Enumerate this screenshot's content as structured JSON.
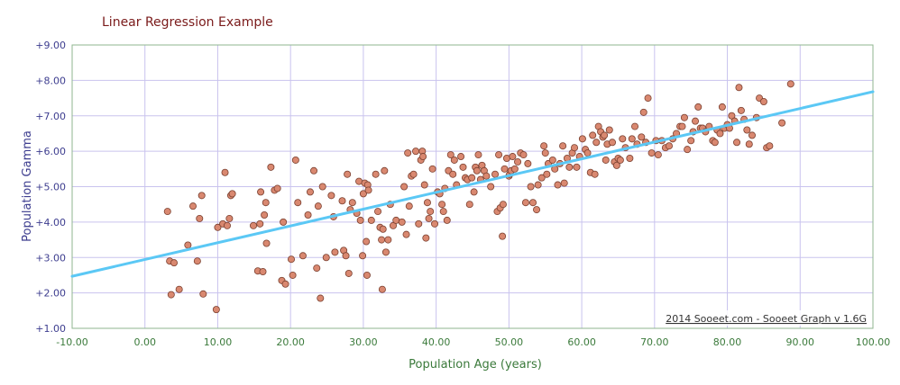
{
  "chart_data": {
    "type": "scatter",
    "title": "Linear Regression Example",
    "xlabel": "Population Age (years)",
    "ylabel": "Population Gamma",
    "xlim": [
      -10,
      100
    ],
    "ylim": [
      1,
      9
    ],
    "x_ticks": [
      "-10.00",
      "0.00",
      "10.00",
      "20.00",
      "30.00",
      "40.00",
      "50.00",
      "60.00",
      "70.00",
      "80.00",
      "90.00",
      "100.00"
    ],
    "y_ticks": [
      "+1.00",
      "+2.00",
      "+3.00",
      "+4.00",
      "+5.00",
      "+6.00",
      "+7.00",
      "+8.00",
      "+9.00"
    ],
    "grid": true,
    "credit": "2014 Sooeet.com - Sooeet Graph v 1.6G",
    "colors": {
      "points": "#d98870",
      "point_stroke": "#7a4030",
      "trendline": "#5bc8f5",
      "grid": "#c9c3ee",
      "frame": "#8fb58f"
    },
    "trendline": {
      "x": [
        -10,
        100
      ],
      "y": [
        2.47,
        7.68
      ]
    },
    "points": [
      [
        3.1,
        4.3
      ],
      [
        3.4,
        2.9
      ],
      [
        3.6,
        1.95
      ],
      [
        4.0,
        2.85
      ],
      [
        4.7,
        2.1
      ],
      [
        5.9,
        3.35
      ],
      [
        6.6,
        4.45
      ],
      [
        7.2,
        2.9
      ],
      [
        7.5,
        4.1
      ],
      [
        7.8,
        4.75
      ],
      [
        8.0,
        1.97
      ],
      [
        9.8,
        1.53
      ],
      [
        10.0,
        3.85
      ],
      [
        10.7,
        3.95
      ],
      [
        11.0,
        5.4
      ],
      [
        11.3,
        3.9
      ],
      [
        11.6,
        4.1
      ],
      [
        11.8,
        4.75
      ],
      [
        12.0,
        4.8
      ],
      [
        14.9,
        3.9
      ],
      [
        15.5,
        2.62
      ],
      [
        15.8,
        3.95
      ],
      [
        15.9,
        4.85
      ],
      [
        16.2,
        2.6
      ],
      [
        16.4,
        4.2
      ],
      [
        16.6,
        4.55
      ],
      [
        16.7,
        3.4
      ],
      [
        17.3,
        5.55
      ],
      [
        17.8,
        4.9
      ],
      [
        18.2,
        4.95
      ],
      [
        18.8,
        2.35
      ],
      [
        19.0,
        4.0
      ],
      [
        19.3,
        2.25
      ],
      [
        20.1,
        2.95
      ],
      [
        20.3,
        2.5
      ],
      [
        20.7,
        5.75
      ],
      [
        21.0,
        4.55
      ],
      [
        21.7,
        3.05
      ],
      [
        22.4,
        4.2
      ],
      [
        22.7,
        4.85
      ],
      [
        23.2,
        5.45
      ],
      [
        23.6,
        2.7
      ],
      [
        23.8,
        4.45
      ],
      [
        24.1,
        1.85
      ],
      [
        24.4,
        5.0
      ],
      [
        24.9,
        3.0
      ],
      [
        25.6,
        4.75
      ],
      [
        25.9,
        4.15
      ],
      [
        26.1,
        3.15
      ],
      [
        27.1,
        4.6
      ],
      [
        27.3,
        3.2
      ],
      [
        27.6,
        3.05
      ],
      [
        27.8,
        5.35
      ],
      [
        28.0,
        2.55
      ],
      [
        28.2,
        4.35
      ],
      [
        28.5,
        4.55
      ],
      [
        29.1,
        4.25
      ],
      [
        29.4,
        5.15
      ],
      [
        29.6,
        4.05
      ],
      [
        29.9,
        3.05
      ],
      [
        30.0,
        4.8
      ],
      [
        30.2,
        5.1
      ],
      [
        30.4,
        3.45
      ],
      [
        30.5,
        2.5
      ],
      [
        30.6,
        5.05
      ],
      [
        30.7,
        4.9
      ],
      [
        31.1,
        4.05
      ],
      [
        31.7,
        5.35
      ],
      [
        32.0,
        4.3
      ],
      [
        32.3,
        3.85
      ],
      [
        32.5,
        3.5
      ],
      [
        32.6,
        2.1
      ],
      [
        32.7,
        3.8
      ],
      [
        32.9,
        5.45
      ],
      [
        33.1,
        3.15
      ],
      [
        33.4,
        3.5
      ],
      [
        33.7,
        4.5
      ],
      [
        34.1,
        3.9
      ],
      [
        34.5,
        4.05
      ],
      [
        35.3,
        4.0
      ],
      [
        35.6,
        5.0
      ],
      [
        35.9,
        3.65
      ],
      [
        36.1,
        5.95
      ],
      [
        36.3,
        4.45
      ],
      [
        36.6,
        5.3
      ],
      [
        36.9,
        5.35
      ],
      [
        37.2,
        6.0
      ],
      [
        37.6,
        3.95
      ],
      [
        37.9,
        5.75
      ],
      [
        38.1,
        6.0
      ],
      [
        38.2,
        5.85
      ],
      [
        38.4,
        5.05
      ],
      [
        38.6,
        3.55
      ],
      [
        38.8,
        4.55
      ],
      [
        39.0,
        4.1
      ],
      [
        39.2,
        4.3
      ],
      [
        39.5,
        5.5
      ],
      [
        39.8,
        3.95
      ],
      [
        40.2,
        4.85
      ],
      [
        40.5,
        4.8
      ],
      [
        40.8,
        4.5
      ],
      [
        41.0,
        4.3
      ],
      [
        41.2,
        4.95
      ],
      [
        41.5,
        4.05
      ],
      [
        41.7,
        5.45
      ],
      [
        42.0,
        5.9
      ],
      [
        42.3,
        5.35
      ],
      [
        42.5,
        5.75
      ],
      [
        42.8,
        5.05
      ],
      [
        43.4,
        5.85
      ],
      [
        43.7,
        5.55
      ],
      [
        44.0,
        5.25
      ],
      [
        44.3,
        5.2
      ],
      [
        44.6,
        4.5
      ],
      [
        44.9,
        5.25
      ],
      [
        45.2,
        4.85
      ],
      [
        45.4,
        5.55
      ],
      [
        45.6,
        5.45
      ],
      [
        45.8,
        5.9
      ],
      [
        46.1,
        5.2
      ],
      [
        46.3,
        5.6
      ],
      [
        46.6,
        5.45
      ],
      [
        46.9,
        5.3
      ],
      [
        47.5,
        5.0
      ],
      [
        48.1,
        5.35
      ],
      [
        48.4,
        4.3
      ],
      [
        48.6,
        5.9
      ],
      [
        48.8,
        4.4
      ],
      [
        49.1,
        3.6
      ],
      [
        49.2,
        4.5
      ],
      [
        49.4,
        5.5
      ],
      [
        49.7,
        5.8
      ],
      [
        50.0,
        5.3
      ],
      [
        50.1,
        5.35
      ],
      [
        50.3,
        5.45
      ],
      [
        50.5,
        5.85
      ],
      [
        50.8,
        5.5
      ],
      [
        51.2,
        5.7
      ],
      [
        51.6,
        5.95
      ],
      [
        52.0,
        5.9
      ],
      [
        52.3,
        4.55
      ],
      [
        52.6,
        5.65
      ],
      [
        53.0,
        5.0
      ],
      [
        53.3,
        4.55
      ],
      [
        53.8,
        4.35
      ],
      [
        54.0,
        5.05
      ],
      [
        54.5,
        5.25
      ],
      [
        54.8,
        6.15
      ],
      [
        55.0,
        5.95
      ],
      [
        55.2,
        5.35
      ],
      [
        55.4,
        5.65
      ],
      [
        56.0,
        5.75
      ],
      [
        56.3,
        5.5
      ],
      [
        56.7,
        5.05
      ],
      [
        57.0,
        5.65
      ],
      [
        57.4,
        6.15
      ],
      [
        57.6,
        5.1
      ],
      [
        58.0,
        5.8
      ],
      [
        58.3,
        5.55
      ],
      [
        58.7,
        5.95
      ],
      [
        59.0,
        6.1
      ],
      [
        59.3,
        5.55
      ],
      [
        59.7,
        5.85
      ],
      [
        60.1,
        6.35
      ],
      [
        60.5,
        6.05
      ],
      [
        60.8,
        5.95
      ],
      [
        61.2,
        5.4
      ],
      [
        61.5,
        6.45
      ],
      [
        61.8,
        5.35
      ],
      [
        62.0,
        6.25
      ],
      [
        62.3,
        6.7
      ],
      [
        62.6,
        6.55
      ],
      [
        62.9,
        6.4
      ],
      [
        63.1,
        6.45
      ],
      [
        63.3,
        5.75
      ],
      [
        63.5,
        6.2
      ],
      [
        63.8,
        6.6
      ],
      [
        64.2,
        6.25
      ],
      [
        64.5,
        5.7
      ],
      [
        64.8,
        5.6
      ],
      [
        65.0,
        5.8
      ],
      [
        65.3,
        5.75
      ],
      [
        65.6,
        6.35
      ],
      [
        66.0,
        6.1
      ],
      [
        66.6,
        5.8
      ],
      [
        66.9,
        6.35
      ],
      [
        67.3,
        6.7
      ],
      [
        67.6,
        6.2
      ],
      [
        68.2,
        6.4
      ],
      [
        68.5,
        7.1
      ],
      [
        68.8,
        6.25
      ],
      [
        69.1,
        7.5
      ],
      [
        69.6,
        5.95
      ],
      [
        70.2,
        6.3
      ],
      [
        70.5,
        5.9
      ],
      [
        71.0,
        6.3
      ],
      [
        71.5,
        6.1
      ],
      [
        72.0,
        6.15
      ],
      [
        72.5,
        6.35
      ],
      [
        73.0,
        6.5
      ],
      [
        73.5,
        6.7
      ],
      [
        73.8,
        6.7
      ],
      [
        74.1,
        6.95
      ],
      [
        74.5,
        6.05
      ],
      [
        75.0,
        6.3
      ],
      [
        75.3,
        6.55
      ],
      [
        75.6,
        6.85
      ],
      [
        76.0,
        7.25
      ],
      [
        76.3,
        6.65
      ],
      [
        76.6,
        6.65
      ],
      [
        77.0,
        6.55
      ],
      [
        77.5,
        6.7
      ],
      [
        78.0,
        6.3
      ],
      [
        78.3,
        6.25
      ],
      [
        78.6,
        6.6
      ],
      [
        79.0,
        6.5
      ],
      [
        79.3,
        7.25
      ],
      [
        79.6,
        6.65
      ],
      [
        80.0,
        6.75
      ],
      [
        80.3,
        6.65
      ],
      [
        80.6,
        7.0
      ],
      [
        81.0,
        6.85
      ],
      [
        81.3,
        6.25
      ],
      [
        81.6,
        7.8
      ],
      [
        81.9,
        7.15
      ],
      [
        82.3,
        6.9
      ],
      [
        82.7,
        6.6
      ],
      [
        83.0,
        6.2
      ],
      [
        83.4,
        6.45
      ],
      [
        84.0,
        6.95
      ],
      [
        84.4,
        7.5
      ],
      [
        85.0,
        7.4
      ],
      [
        85.4,
        6.1
      ],
      [
        85.8,
        6.15
      ],
      [
        87.5,
        6.8
      ],
      [
        88.7,
        7.9
      ]
    ]
  }
}
